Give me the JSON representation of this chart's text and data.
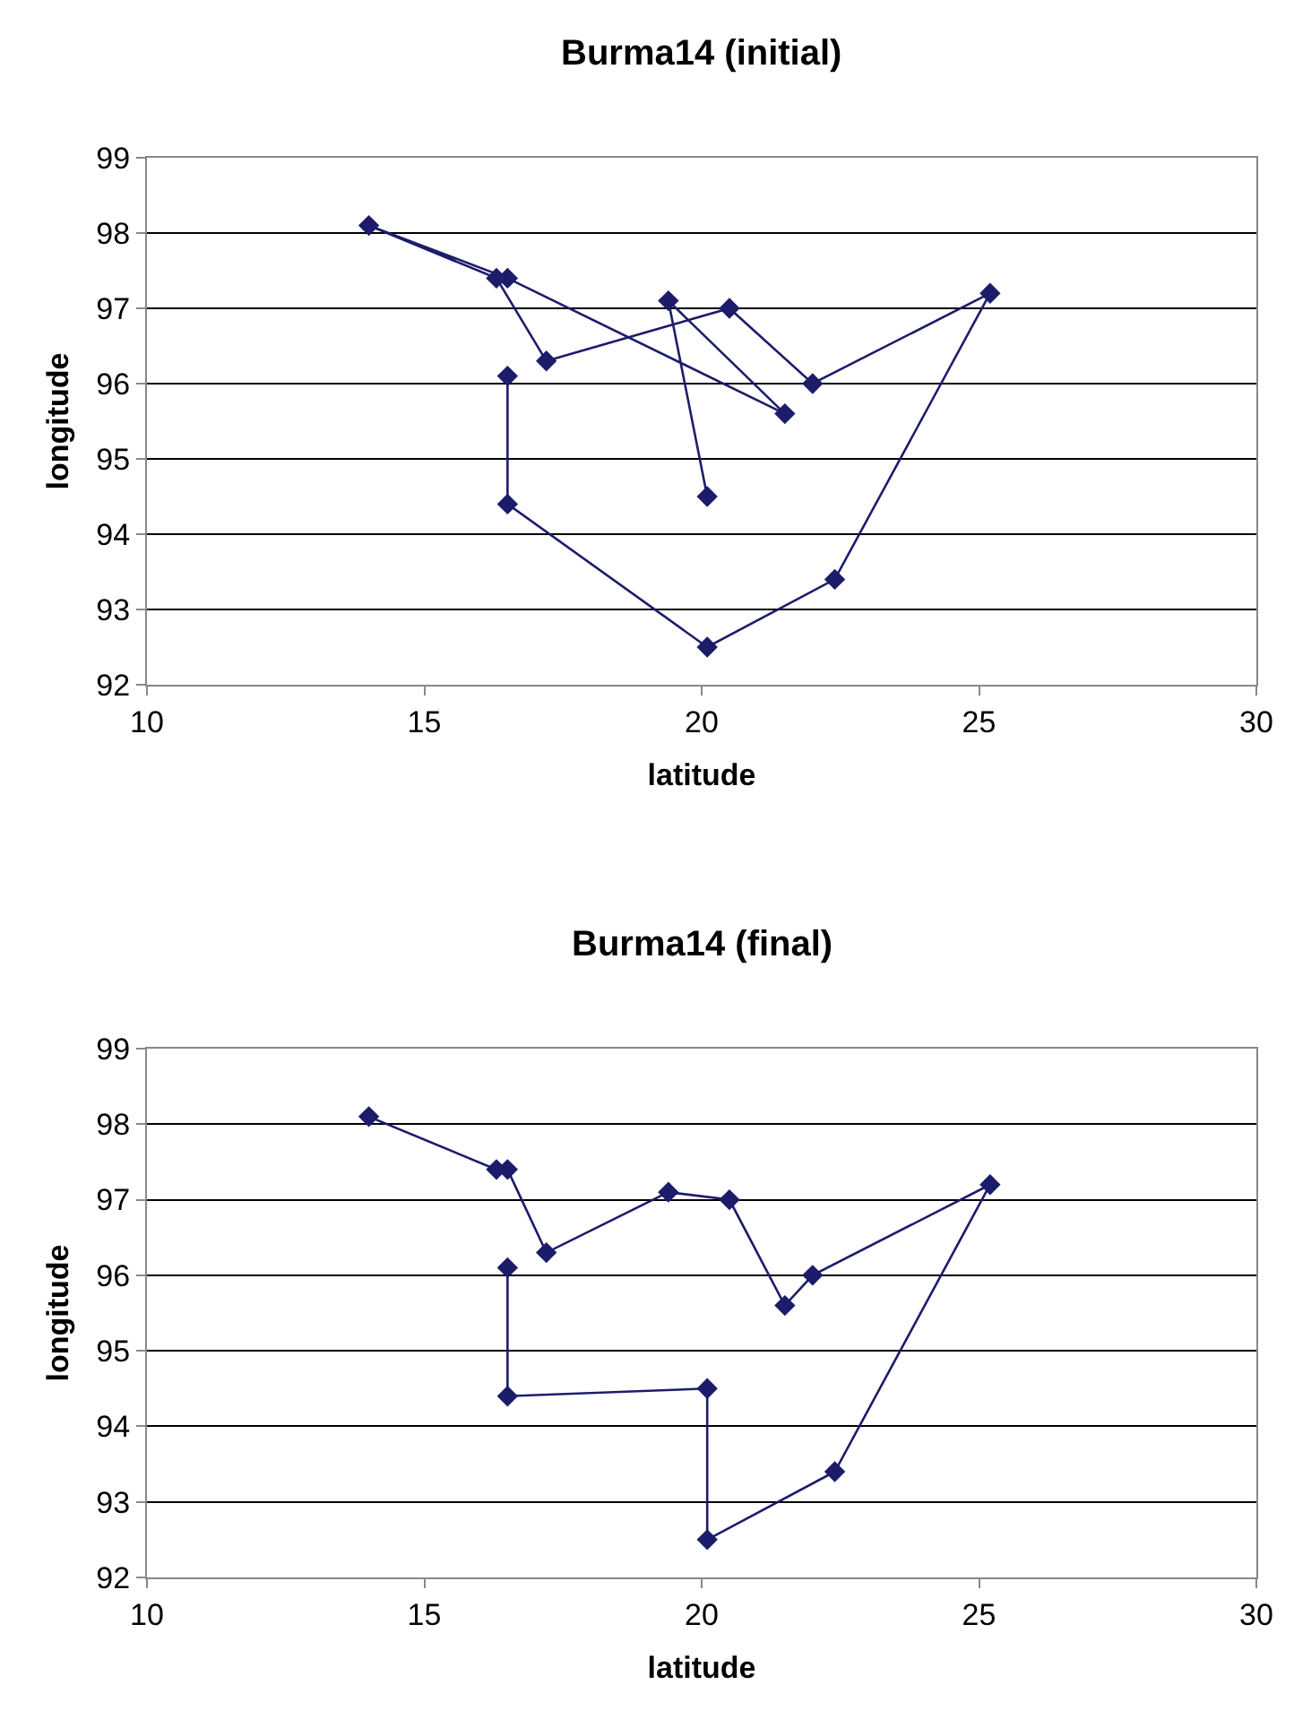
{
  "chart_data": [
    {
      "type": "line",
      "title": "Burma14 (initial)",
      "xlabel": "latitude",
      "ylabel": "longitude",
      "xlim": [
        10,
        30
      ],
      "xticks": [
        10,
        15,
        20,
        25,
        30
      ],
      "ylim": [
        92,
        99
      ],
      "yticks": [
        92,
        93,
        94,
        95,
        96,
        97,
        98,
        99
      ],
      "grid": "y",
      "marker": "diamond",
      "line_style": "solid",
      "series": [
        {
          "color": "#1c1c6b",
          "x": [
            16.5,
            16.5,
            20.1,
            22.4,
            25.2,
            22.0,
            20.5,
            17.2,
            16.3,
            14.0,
            16.5,
            21.5,
            19.4,
            20.1
          ],
          "values": [
            96.1,
            94.4,
            92.5,
            93.4,
            97.2,
            96.0,
            97.0,
            96.3,
            97.4,
            98.1,
            97.4,
            95.6,
            97.1,
            94.5
          ]
        }
      ]
    },
    {
      "type": "line",
      "title": "Burma14 (final)",
      "xlabel": "latitude",
      "ylabel": "longitude",
      "xlim": [
        10,
        30
      ],
      "xticks": [
        10,
        15,
        20,
        25,
        30
      ],
      "ylim": [
        92,
        99
      ],
      "yticks": [
        92,
        93,
        94,
        95,
        96,
        97,
        98,
        99
      ],
      "grid": "y",
      "marker": "diamond",
      "line_style": "solid",
      "series": [
        {
          "color": "#1c1c6b",
          "x": [
            16.5,
            16.5,
            20.1,
            20.1,
            22.4,
            25.2,
            22.0,
            21.5,
            20.5,
            19.4,
            17.2,
            16.5,
            16.3,
            14.0
          ],
          "values": [
            96.1,
            94.4,
            94.5,
            92.5,
            93.4,
            97.2,
            96.0,
            95.6,
            97.0,
            97.1,
            96.3,
            97.4,
            97.4,
            98.1
          ]
        }
      ]
    }
  ]
}
